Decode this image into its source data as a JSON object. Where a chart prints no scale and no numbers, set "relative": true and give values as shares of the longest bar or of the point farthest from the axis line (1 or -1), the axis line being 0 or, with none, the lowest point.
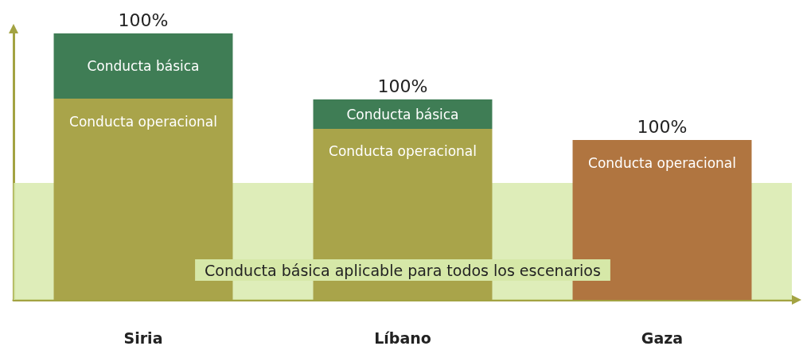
{
  "chart_data": {
    "type": "bar",
    "stacked": true,
    "relative": true,
    "categories": [
      "Siria",
      "Líbano",
      "Gaza"
    ],
    "series": [
      {
        "name": "Conducta operacional",
        "color": "#a9a44a",
        "colors": [
          "#a9a44a",
          "#a9a44a",
          "#b07540"
        ],
        "values": [
          0.755,
          0.642,
          0.6
        ]
      },
      {
        "name": "Conducta básica",
        "color": "#3f7d55",
        "values": [
          0.245,
          0.11,
          null
        ]
      }
    ],
    "annotations": [
      "100%",
      "100%",
      "100%"
    ],
    "bands": [
      {
        "axis": "y",
        "from": 0,
        "to": 0.439,
        "label": "Conducta básica aplicable para todos los escenarios",
        "color": "#d6e8a8"
      }
    ]
  }
}
